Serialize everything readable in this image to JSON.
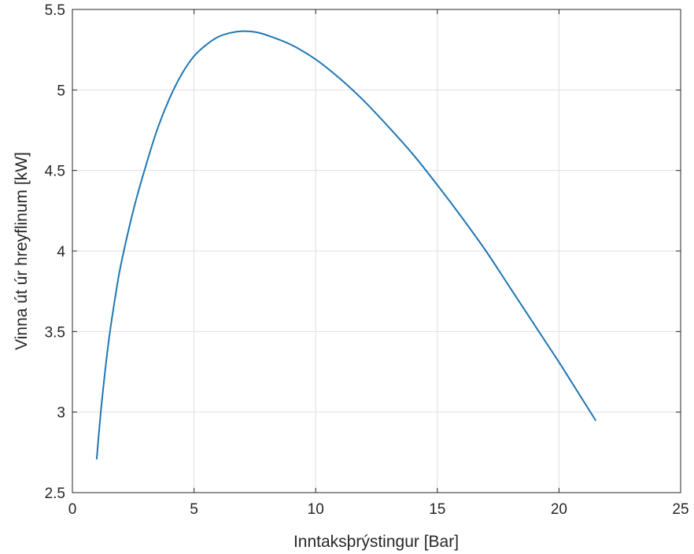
{
  "chart_data": {
    "type": "line",
    "title": "",
    "xlabel": "Inntaksþrýstingur [Bar]",
    "ylabel": "Vinna út úr hreyflinum [kW]",
    "xlim": [
      0,
      25
    ],
    "ylim": [
      2.5,
      5.5
    ],
    "xticks": [
      0,
      5,
      10,
      15,
      20,
      25
    ],
    "yticks": [
      2.5,
      3,
      3.5,
      4,
      4.5,
      5,
      5.5
    ],
    "xtick_labels": [
      "0",
      "5",
      "10",
      "15",
      "20",
      "25"
    ],
    "ytick_labels": [
      "2.5",
      "3",
      "3.5",
      "4",
      "4.5",
      "5",
      "5.5"
    ],
    "grid": true,
    "series": [
      {
        "color": "#1f77b4",
        "x": [
          1.0,
          1.2,
          1.5,
          1.8,
          2.0,
          2.5,
          3.0,
          3.5,
          4.0,
          4.5,
          5.0,
          5.5,
          6.0,
          6.5,
          7.0,
          7.5,
          8.0,
          9.0,
          10.0,
          11.0,
          12.0,
          13.0,
          14.0,
          15.0,
          16.0,
          17.0,
          18.0,
          19.0,
          20.0,
          21.0,
          21.5
        ],
        "y": [
          2.71,
          3.05,
          3.45,
          3.75,
          3.92,
          4.25,
          4.52,
          4.76,
          4.95,
          5.1,
          5.21,
          5.28,
          5.33,
          5.355,
          5.365,
          5.36,
          5.34,
          5.28,
          5.19,
          5.07,
          4.93,
          4.77,
          4.6,
          4.41,
          4.21,
          4.0,
          3.77,
          3.54,
          3.31,
          3.07,
          2.95
        ]
      }
    ]
  }
}
